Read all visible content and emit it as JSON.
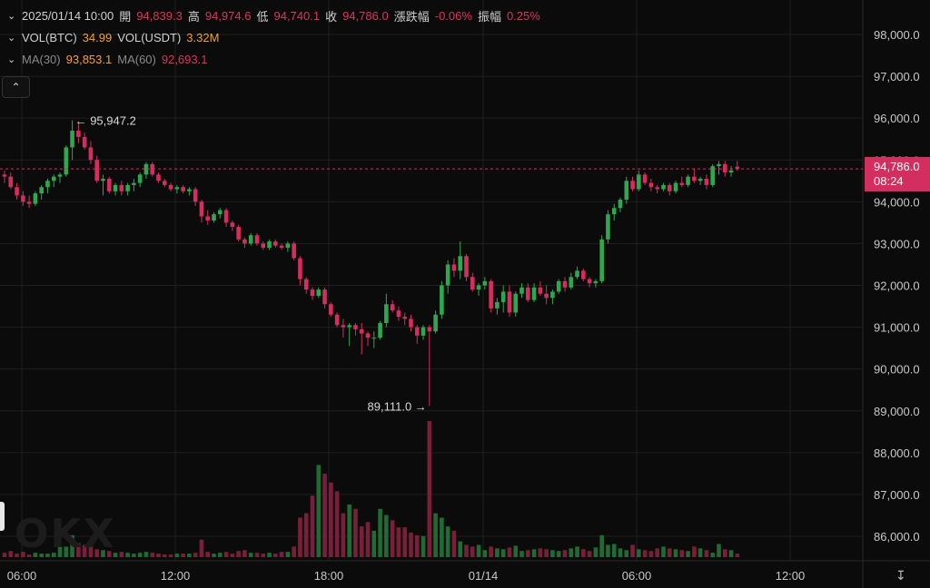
{
  "header": {
    "datetime": "2025/01/14 10:00",
    "open_label": "開",
    "open": "94,839.3",
    "high_label": "高",
    "high": "94,974.6",
    "low_label": "低",
    "low": "94,740.1",
    "close_label": "收",
    "close": "94,786.0",
    "change_label": "漲跌幅",
    "change": "-0.06%",
    "amp_label": "振幅",
    "amp": "0.25%"
  },
  "volume_row": {
    "btc_label": "VOL(BTC)",
    "btc": "34.99",
    "usdt_label": "VOL(USDT)",
    "usdt": "3.32M"
  },
  "ma_row": {
    "ma30_label": "MA(30)",
    "ma30": "93,853.1",
    "ma60_label": "MA(60)",
    "ma60": "92,693.1"
  },
  "price_tag": {
    "price": "94,786.0",
    "countdown": "08:24"
  },
  "watermark": "OKX",
  "colors": {
    "up": "#2ea84f",
    "down": "#d42d5f",
    "vol_up": "#1f6b33",
    "vol_down": "#7a1f3a",
    "background": "#0b0b0b",
    "grid": "#1f1f1f"
  },
  "icons": {
    "collapse": "chevron-up-icon",
    "axis_scale": "scale-icon"
  },
  "chart_data": {
    "type": "candlestick",
    "x_ticks": [
      "06:00",
      "12:00",
      "18:00",
      "01/14",
      "06:00",
      "12:00"
    ],
    "y_ticks": [
      "98,000.0",
      "97,000.0",
      "96,000.0",
      "95,000.0",
      "94,000.0",
      "93,000.0",
      "92,000.0",
      "91,000.0",
      "90,000.0",
      "89,000.0",
      "88,000.0",
      "87,000.0",
      "86,000.0"
    ],
    "ylim": [
      85700,
      98300
    ],
    "high_marker": "95,947.2",
    "low_marker": "89,111.0",
    "last_price": 94786.0,
    "candles_ohlc": [
      [
        94650,
        94750,
        94450,
        94600
      ],
      [
        94600,
        94700,
        94300,
        94350
      ],
      [
        94350,
        94450,
        94050,
        94150
      ],
      [
        94150,
        94250,
        93900,
        94000
      ],
      [
        94000,
        94150,
        93850,
        93950
      ],
      [
        93950,
        94250,
        93900,
        94200
      ],
      [
        94200,
        94400,
        94050,
        94350
      ],
      [
        94350,
        94550,
        94200,
        94500
      ],
      [
        94500,
        94650,
        94350,
        94600
      ],
      [
        94600,
        94700,
        94450,
        94650
      ],
      [
        94650,
        95350,
        94600,
        95300
      ],
      [
        95300,
        95947,
        95000,
        95700
      ],
      [
        95700,
        95850,
        95400,
        95550
      ],
      [
        95550,
        95650,
        95250,
        95300
      ],
      [
        95300,
        95450,
        94900,
        95000
      ],
      [
        95000,
        95100,
        94450,
        94500
      ],
      [
        94500,
        94650,
        94150,
        94550
      ],
      [
        94550,
        94600,
        94200,
        94250
      ],
      [
        94250,
        94450,
        94150,
        94400
      ],
      [
        94400,
        94500,
        94150,
        94250
      ],
      [
        94250,
        94450,
        94150,
        94400
      ],
      [
        94400,
        94550,
        94250,
        94450
      ],
      [
        94450,
        94700,
        94350,
        94650
      ],
      [
        94650,
        94950,
        94550,
        94900
      ],
      [
        94900,
        94950,
        94600,
        94650
      ],
      [
        94650,
        94700,
        94450,
        94500
      ],
      [
        94500,
        94550,
        94350,
        94400
      ],
      [
        94400,
        94450,
        94250,
        94300
      ],
      [
        94300,
        94400,
        94200,
        94350
      ],
      [
        94350,
        94400,
        94200,
        94250
      ],
      [
        94250,
        94350,
        94150,
        94300
      ],
      [
        94300,
        94350,
        93900,
        94000
      ],
      [
        94000,
        94050,
        93500,
        93650
      ],
      [
        93650,
        93800,
        93450,
        93550
      ],
      [
        93550,
        93750,
        93500,
        93700
      ],
      [
        93700,
        93850,
        93600,
        93800
      ],
      [
        93800,
        93850,
        93400,
        93500
      ],
      [
        93500,
        93550,
        93300,
        93400
      ],
      [
        93400,
        93450,
        93050,
        93100
      ],
      [
        93100,
        93150,
        92900,
        93000
      ],
      [
        93000,
        93250,
        92950,
        93200
      ],
      [
        93200,
        93250,
        92950,
        93000
      ],
      [
        93000,
        93050,
        92850,
        92900
      ],
      [
        92900,
        93100,
        92850,
        93050
      ],
      [
        93050,
        93100,
        92900,
        92950
      ],
      [
        92950,
        93000,
        92850,
        92900
      ],
      [
        92900,
        93050,
        92800,
        93000
      ],
      [
        93000,
        93050,
        92600,
        92650
      ],
      [
        92650,
        92700,
        92000,
        92150
      ],
      [
        92150,
        92200,
        91800,
        91900
      ],
      [
        91900,
        91950,
        91650,
        91750
      ],
      [
        91750,
        91950,
        91700,
        91900
      ],
      [
        91900,
        91950,
        91450,
        91550
      ],
      [
        91550,
        91600,
        91250,
        91300
      ],
      [
        91300,
        91350,
        91000,
        91050
      ],
      [
        91050,
        91200,
        90750,
        91000
      ],
      [
        91000,
        91100,
        90550,
        91050
      ],
      [
        91050,
        91100,
        90800,
        90950
      ],
      [
        90950,
        91100,
        90350,
        90850
      ],
      [
        90850,
        90900,
        90550,
        90750
      ],
      [
        90750,
        90900,
        90500,
        90750
      ],
      [
        90750,
        91150,
        90700,
        91100
      ],
      [
        91100,
        91800,
        91000,
        91550
      ],
      [
        91550,
        91650,
        91350,
        91400
      ],
      [
        91400,
        91500,
        91150,
        91250
      ],
      [
        91250,
        91350,
        91050,
        91200
      ],
      [
        91200,
        91300,
        90900,
        91000
      ],
      [
        91000,
        91050,
        90600,
        90800
      ],
      [
        90800,
        91050,
        90700,
        91000
      ],
      [
        91000,
        91050,
        89111,
        90900
      ],
      [
        90900,
        91400,
        90850,
        91300
      ],
      [
        91300,
        92100,
        91200,
        92000
      ],
      [
        92000,
        92600,
        91800,
        92500
      ],
      [
        92500,
        92650,
        92200,
        92350
      ],
      [
        92350,
        93050,
        92150,
        92700
      ],
      [
        92700,
        92750,
        92100,
        92200
      ],
      [
        92200,
        92300,
        91850,
        91900
      ],
      [
        91900,
        92050,
        91750,
        92000
      ],
      [
        92000,
        92200,
        91900,
        92100
      ],
      [
        92100,
        92150,
        91350,
        91450
      ],
      [
        91450,
        91700,
        91300,
        91600
      ],
      [
        91600,
        92000,
        91350,
        91850
      ],
      [
        91850,
        92000,
        91250,
        91350
      ],
      [
        91350,
        91850,
        91250,
        91800
      ],
      [
        91800,
        92050,
        91700,
        91950
      ],
      [
        91950,
        92050,
        91600,
        91650
      ],
      [
        91650,
        92050,
        91600,
        91950
      ],
      [
        91950,
        92100,
        91750,
        91800
      ],
      [
        91800,
        92000,
        91550,
        91700
      ],
      [
        91700,
        91900,
        91550,
        91850
      ],
      [
        91850,
        92150,
        91800,
        92100
      ],
      [
        92100,
        92200,
        91850,
        91950
      ],
      [
        91950,
        92300,
        91900,
        92200
      ],
      [
        92200,
        92450,
        92150,
        92350
      ],
      [
        92350,
        92400,
        92100,
        92150
      ],
      [
        92150,
        92200,
        91950,
        92050
      ],
      [
        92050,
        92150,
        91950,
        92100
      ],
      [
        92100,
        93200,
        92050,
        93100
      ],
      [
        93100,
        93800,
        93000,
        93700
      ],
      [
        93700,
        93950,
        93550,
        93850
      ],
      [
        93850,
        94100,
        93750,
        94050
      ],
      [
        94050,
        94600,
        93950,
        94500
      ],
      [
        94500,
        94600,
        94250,
        94300
      ],
      [
        94300,
        94750,
        94250,
        94650
      ],
      [
        94650,
        94700,
        94400,
        94450
      ],
      [
        94450,
        94550,
        94250,
        94350
      ],
      [
        94350,
        94400,
        94200,
        94300
      ],
      [
        94300,
        94450,
        94250,
        94400
      ],
      [
        94400,
        94450,
        94150,
        94250
      ],
      [
        94250,
        94500,
        94200,
        94450
      ],
      [
        94450,
        94600,
        94350,
        94400
      ],
      [
        94400,
        94650,
        94350,
        94600
      ],
      [
        94600,
        94800,
        94450,
        94500
      ],
      [
        94500,
        94600,
        94400,
        94550
      ],
      [
        94550,
        94650,
        94300,
        94400
      ],
      [
        94400,
        94900,
        94350,
        94850
      ],
      [
        94850,
        94974,
        94650,
        94900
      ],
      [
        94900,
        94974,
        94600,
        94700
      ],
      [
        94700,
        94850,
        94600,
        94750
      ],
      [
        94839,
        94974,
        94740,
        94786
      ]
    ],
    "volume": [
      5,
      7,
      4,
      6,
      3,
      5,
      4,
      4,
      5,
      12,
      12,
      25,
      16,
      14,
      14,
      9,
      8,
      7,
      5,
      6,
      5,
      4,
      5,
      6,
      5,
      4,
      3,
      3,
      4,
      4,
      4,
      5,
      20,
      6,
      4,
      5,
      6,
      4,
      7,
      8,
      5,
      5,
      4,
      5,
      4,
      6,
      6,
      12,
      45,
      50,
      70,
      105,
      95,
      85,
      75,
      50,
      60,
      55,
      35,
      40,
      30,
      55,
      48,
      42,
      34,
      34,
      28,
      25,
      24,
      155,
      50,
      45,
      35,
      30,
      18,
      14,
      12,
      14,
      8,
      12,
      10,
      9,
      11,
      13,
      7,
      8,
      9,
      10,
      9,
      8,
      7,
      8,
      10,
      12,
      9,
      7,
      11,
      25,
      14,
      15,
      10,
      8,
      14,
      9,
      8,
      7,
      10,
      12,
      10,
      9,
      8,
      7,
      12,
      10,
      8,
      5,
      15,
      9,
      8,
      4
    ]
  }
}
